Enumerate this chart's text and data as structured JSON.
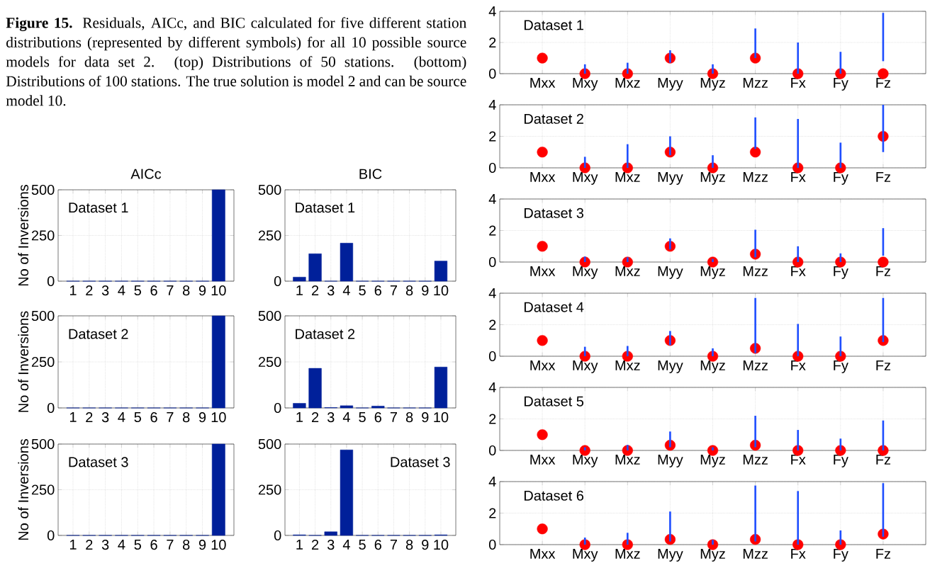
{
  "chart_data": [
    {
      "type": "other",
      "annotations": [
        "**Figure 15.**  Residuals, AICc, and BIC calculated for five different station distributions (represented by different symbols) for all 10 possible source models for data set 2. (top) Distributions of 50 stations. (bottom) Distributions of 100 stations. The true solution is model 2 and can be source model 10."
      ]
    },
    {
      "type": "bar",
      "title": "AICc",
      "ylabel": "No of Inversions",
      "annotations": [
        "Dataset 1"
      ],
      "categories": [
        "1",
        "2",
        "3",
        "4",
        "5",
        "6",
        "7",
        "8",
        "9",
        "10"
      ],
      "values": [
        0,
        0,
        0,
        0,
        0,
        0,
        0,
        0,
        0,
        500
      ],
      "color": "#00209a",
      "ylim": [
        0,
        500
      ],
      "yticks": [
        0,
        250,
        500
      ],
      "grid": true
    },
    {
      "type": "bar",
      "title": "BIC",
      "annotations": [
        "Dataset 1"
      ],
      "categories": [
        "1",
        "2",
        "3",
        "4",
        "5",
        "6",
        "7",
        "8",
        "9",
        "10"
      ],
      "values": [
        22,
        150,
        0,
        208,
        0,
        0,
        0,
        0,
        0,
        110
      ],
      "color": "#00209a",
      "ylim": [
        0,
        500
      ],
      "yticks": [
        0,
        250,
        500
      ],
      "grid": true
    },
    {
      "type": "bar",
      "ylabel": "No of Inversions",
      "annotations": [
        "Dataset 2"
      ],
      "categories": [
        "1",
        "2",
        "3",
        "4",
        "5",
        "6",
        "7",
        "8",
        "9",
        "10"
      ],
      "values": [
        0,
        0,
        0,
        0,
        0,
        0,
        0,
        0,
        0,
        500
      ],
      "color": "#00209a",
      "ylim": [
        0,
        500
      ],
      "yticks": [
        0,
        250,
        500
      ],
      "grid": true
    },
    {
      "type": "bar",
      "annotations": [
        "Dataset 2"
      ],
      "categories": [
        "1",
        "2",
        "3",
        "4",
        "5",
        "6",
        "7",
        "8",
        "9",
        "10"
      ],
      "values": [
        25,
        215,
        2,
        12,
        0,
        10,
        0,
        0,
        0,
        222
      ],
      "color": "#00209a",
      "ylim": [
        0,
        500
      ],
      "yticks": [
        0,
        250,
        500
      ],
      "grid": true
    },
    {
      "type": "bar",
      "ylabel": "No of Inversions",
      "annotations": [
        "Dataset 3"
      ],
      "categories": [
        "1",
        "2",
        "3",
        "4",
        "5",
        "6",
        "7",
        "8",
        "9",
        "10"
      ],
      "values": [
        0,
        0,
        0,
        0,
        0,
        0,
        0,
        0,
        0,
        500
      ],
      "color": "#00209a",
      "ylim": [
        0,
        500
      ],
      "yticks": [
        0,
        250,
        500
      ],
      "grid": true
    },
    {
      "type": "bar",
      "annotations": [
        "Dataset 3"
      ],
      "categories": [
        "1",
        "2",
        "3",
        "4",
        "5",
        "6",
        "7",
        "8",
        "9",
        "10"
      ],
      "values": [
        3,
        0,
        20,
        468,
        0,
        0,
        0,
        0,
        0,
        3
      ],
      "color": "#00209a",
      "ylim": [
        0,
        500
      ],
      "yticks": [
        0,
        250,
        500
      ],
      "grid": true
    },
    {
      "type": "bar",
      "annotations": [
        "Dataset 1"
      ],
      "categories": [
        "Mxx",
        "Mxy",
        "Mxz",
        "Myy",
        "Myz",
        "Mzz",
        "Fx",
        "Fy",
        "Fz"
      ],
      "marker": "circle",
      "ylim": [
        0,
        4
      ],
      "yticks": [
        0,
        2,
        4
      ],
      "grid": true,
      "series": [
        {
          "type": "scatter",
          "color": "#ff0000",
          "values": [
            1,
            0,
            0,
            1,
            0,
            1,
            0,
            0,
            0
          ]
        },
        {
          "type": "bar",
          "color": "#1f4fff",
          "base": [
            null,
            0,
            0,
            0.7,
            0,
            1,
            0,
            0,
            0.8
          ],
          "values": [
            null,
            0.6,
            0.7,
            0.8,
            0.6,
            1.9,
            2,
            1.4,
            3.1
          ]
        }
      ]
    },
    {
      "type": "bar",
      "annotations": [
        "Dataset 2"
      ],
      "categories": [
        "Mxx",
        "Mxy",
        "Mxz",
        "Myy",
        "Myz",
        "Mzz",
        "Fx",
        "Fy",
        "Fz"
      ],
      "marker": "circle",
      "ylim": [
        0,
        4
      ],
      "yticks": [
        0,
        2,
        4
      ],
      "grid": true,
      "series": [
        {
          "type": "scatter",
          "color": "#ff0000",
          "values": [
            1,
            0,
            0,
            1,
            0,
            1,
            0,
            0,
            2
          ]
        },
        {
          "type": "bar",
          "color": "#1f4fff",
          "base": [
            null,
            0,
            0,
            0.8,
            0,
            1.2,
            0,
            0,
            1
          ],
          "values": [
            null,
            0.7,
            1.5,
            1.2,
            0.8,
            2,
            3.1,
            1.6,
            3
          ]
        }
      ]
    },
    {
      "type": "bar",
      "annotations": [
        "Dataset 3"
      ],
      "categories": [
        "Mxx",
        "Mxy",
        "Mxz",
        "Myy",
        "Myz",
        "Mzz",
        "Fx",
        "Fy",
        "Fz"
      ],
      "marker": "circle",
      "ylim": [
        0,
        4
      ],
      "yticks": [
        0,
        2,
        4
      ],
      "grid": true,
      "series": [
        {
          "type": "scatter",
          "color": "#ff0000",
          "values": [
            1,
            0,
            0,
            1,
            0,
            0.5,
            0,
            0,
            0
          ]
        },
        {
          "type": "bar",
          "color": "#1f4fff",
          "base": [
            null,
            0,
            0,
            0.8,
            0,
            0.3,
            0,
            0,
            0.4
          ],
          "values": [
            null,
            0.35,
            0.3,
            0.7,
            0.2,
            1.75,
            1,
            0.55,
            1.75
          ]
        }
      ]
    },
    {
      "type": "bar",
      "annotations": [
        "Dataset 4"
      ],
      "categories": [
        "Mxx",
        "Mxy",
        "Mxz",
        "Myy",
        "Myz",
        "Mzz",
        "Fx",
        "Fy",
        "Fz"
      ],
      "marker": "circle",
      "ylim": [
        0,
        4
      ],
      "yticks": [
        0,
        2,
        4
      ],
      "grid": true,
      "series": [
        {
          "type": "scatter",
          "color": "#ff0000",
          "values": [
            1,
            0,
            0,
            1,
            0,
            0.5,
            0,
            0,
            1
          ]
        },
        {
          "type": "bar",
          "color": "#1f4fff",
          "base": [
            null,
            0,
            0,
            0.7,
            0,
            0.2,
            0,
            0,
            0.9
          ],
          "values": [
            null,
            0.6,
            0.65,
            0.9,
            0.5,
            3.5,
            2.05,
            1.25,
            2.8
          ]
        }
      ]
    },
    {
      "type": "bar",
      "annotations": [
        "Dataset 5"
      ],
      "categories": [
        "Mxx",
        "Mxy",
        "Mxz",
        "Myy",
        "Myz",
        "Mzz",
        "Fx",
        "Fy",
        "Fz"
      ],
      "marker": "circle",
      "ylim": [
        0,
        4
      ],
      "yticks": [
        0,
        2,
        4
      ],
      "grid": true,
      "series": [
        {
          "type": "scatter",
          "color": "#ff0000",
          "values": [
            1,
            0,
            0,
            0.33,
            0,
            0.33,
            0,
            0,
            0
          ]
        },
        {
          "type": "bar",
          "color": "#1f4fff",
          "base": [
            null,
            0,
            0,
            0.2,
            0,
            0.2,
            0,
            0,
            0
          ],
          "values": [
            null,
            0.2,
            0.35,
            1,
            0.2,
            2,
            1.3,
            0.75,
            1.9
          ]
        }
      ]
    },
    {
      "type": "bar",
      "annotations": [
        "Dataset 6"
      ],
      "categories": [
        "Mxx",
        "Mxy",
        "Mxz",
        "Myy",
        "Myz",
        "Mzz",
        "Fx",
        "Fy",
        "Fz"
      ],
      "marker": "circle",
      "ylim": [
        0,
        4
      ],
      "yticks": [
        0,
        2,
        4
      ],
      "grid": true,
      "series": [
        {
          "type": "scatter",
          "color": "#ff0000",
          "values": [
            1,
            0,
            0,
            0.33,
            0,
            0.33,
            0,
            0,
            0.67
          ]
        },
        {
          "type": "bar",
          "color": "#1f4fff",
          "base": [
            null,
            0,
            0,
            0.2,
            0,
            0.2,
            0,
            0,
            0.5
          ],
          "values": [
            null,
            0.45,
            0.75,
            1.9,
            0.3,
            3.55,
            3.4,
            0.9,
            3.4
          ]
        }
      ]
    }
  ]
}
